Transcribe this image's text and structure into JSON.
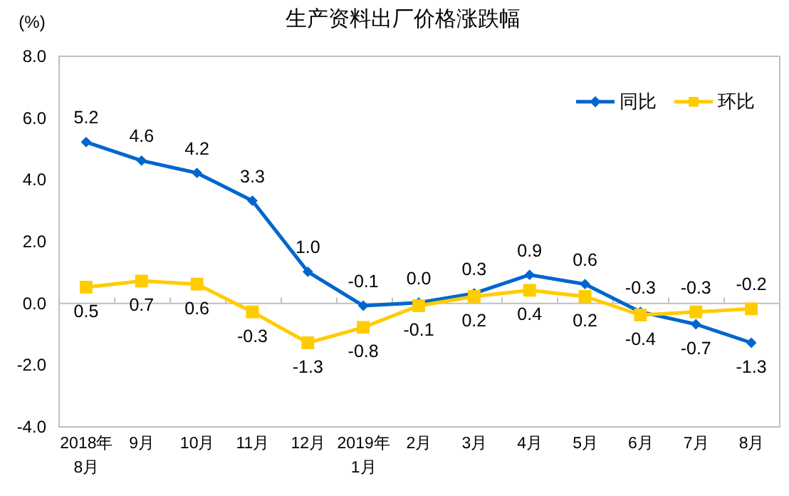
{
  "chart_data": {
    "type": "line",
    "title": "生产资料出厂价格涨跌幅",
    "ylabel": "(%)",
    "categories": [
      "2018年\n8月",
      "9月",
      "10月",
      "11月",
      "12月",
      "2019年\n1月",
      "2月",
      "3月",
      "4月",
      "5月",
      "6月",
      "7月",
      "8月"
    ],
    "series": [
      {
        "name": "同比",
        "color": "#0066cc",
        "marker": "diamond",
        "values": [
          5.2,
          4.6,
          4.2,
          3.3,
          1.0,
          -0.1,
          0.0,
          0.3,
          0.9,
          0.6,
          -0.3,
          -0.7,
          -1.3
        ],
        "value_labels": [
          "5.2",
          "4.6",
          "4.2",
          "3.3",
          "1.0",
          "-0.1",
          "0.0",
          "0.3",
          "0.9",
          "0.6",
          "-0.3",
          "-0.7",
          "-1.3"
        ]
      },
      {
        "name": "环比",
        "color": "#ffcc00",
        "marker": "square",
        "values": [
          0.5,
          0.7,
          0.6,
          -0.3,
          -1.3,
          -0.8,
          -0.1,
          0.2,
          0.4,
          0.2,
          -0.4,
          -0.3,
          -0.2
        ],
        "value_labels": [
          "0.5",
          "0.7",
          "0.6",
          "-0.3",
          "-1.3",
          "-0.8",
          "-0.1",
          "0.2",
          "0.4",
          "0.2",
          "-0.4",
          "-0.3",
          "-0.2"
        ]
      }
    ],
    "ylim": [
      -4,
      8
    ],
    "yticks": [
      {
        "value": -4,
        "label": "-4.0"
      },
      {
        "value": -2,
        "label": "-2.0"
      },
      {
        "value": 0,
        "label": "0.0"
      },
      {
        "value": 2,
        "label": "2.0"
      },
      {
        "value": 4,
        "label": "4.0"
      },
      {
        "value": 6,
        "label": "6.0"
      },
      {
        "value": 8,
        "label": "8.0"
      }
    ],
    "legend": "top right"
  }
}
